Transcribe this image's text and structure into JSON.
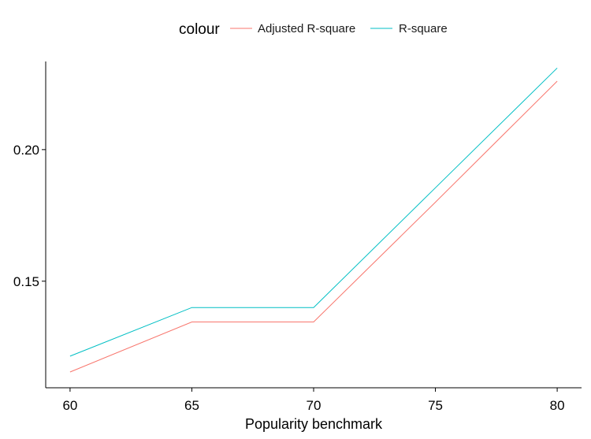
{
  "chart_data": {
    "type": "line",
    "x": [
      60,
      65,
      70,
      75,
      80
    ],
    "series": [
      {
        "name": "Adjusted R-square",
        "color": "#F8766D",
        "values": [
          0.1155,
          0.1345,
          0.1345,
          0.18,
          0.226
        ]
      },
      {
        "name": "R-square",
        "color": "#00BFC4",
        "values": [
          0.1215,
          0.14,
          0.14,
          0.1855,
          0.231
        ]
      }
    ],
    "xlabel": "Popularity benchmark",
    "ylabel": "",
    "xticks": [
      "60",
      "65",
      "70",
      "75",
      "80"
    ],
    "yticks": [
      "0.15",
      "0.20"
    ],
    "ytick_values": [
      0.15,
      0.2
    ],
    "xlim": [
      59.0,
      81.0
    ],
    "ylim": [
      0.1095,
      0.2335
    ],
    "grid": false,
    "legend": {
      "title": "colour",
      "position": "top"
    }
  }
}
